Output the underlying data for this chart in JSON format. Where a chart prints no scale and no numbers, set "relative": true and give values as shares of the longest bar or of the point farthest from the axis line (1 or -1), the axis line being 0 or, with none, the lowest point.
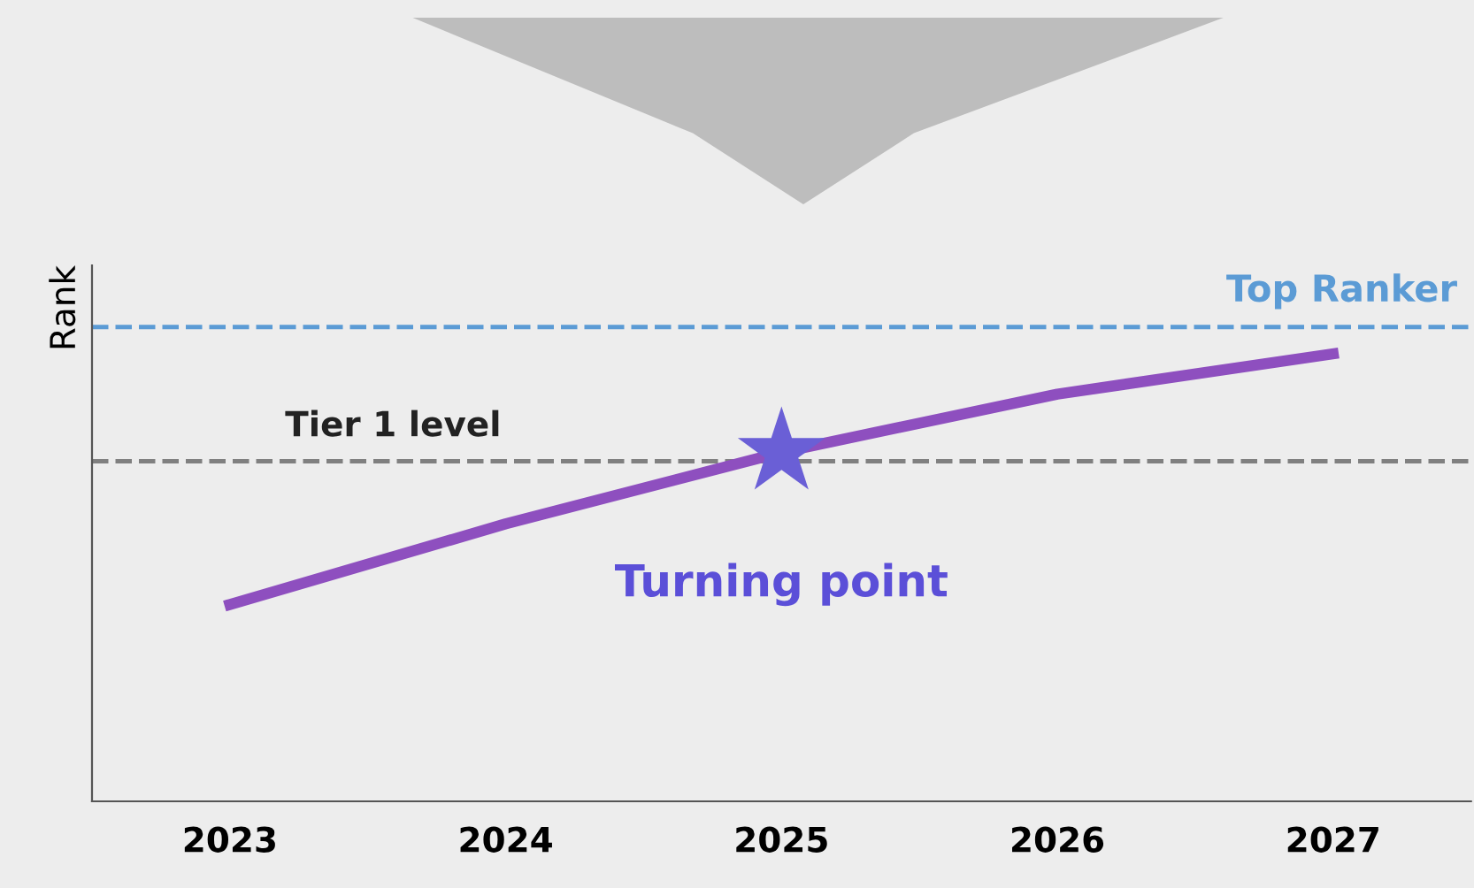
{
  "chart_data": {
    "type": "line",
    "ylabel": "Rank",
    "relative": true,
    "tick_labels": "x",
    "grid": false,
    "legend": false,
    "categories": [
      "2023",
      "2024",
      "2025",
      "2026",
      "2027"
    ],
    "series": [
      {
        "color": "#8e4fbf",
        "values": [
          0.44,
          0.62,
          0.78,
          0.91,
          1.0
        ]
      },
      {
        "type": "scatter",
        "color": "#6a5fd6",
        "marker": "star",
        "values": [
          null,
          null,
          0.78,
          null,
          null
        ]
      }
    ],
    "ref_lines": [
      {
        "axis": "y",
        "value": 1.06,
        "label": "Top Ranker",
        "color": "#5b9bd5",
        "line_style": "dashed"
      },
      {
        "axis": "y",
        "value": 0.76,
        "label": "Tier 1 level",
        "color": "#808080",
        "line_style": "dashed"
      }
    ],
    "annotations": [
      {
        "text": "Turning point",
        "x": "2025",
        "y": 0.78
      }
    ]
  }
}
